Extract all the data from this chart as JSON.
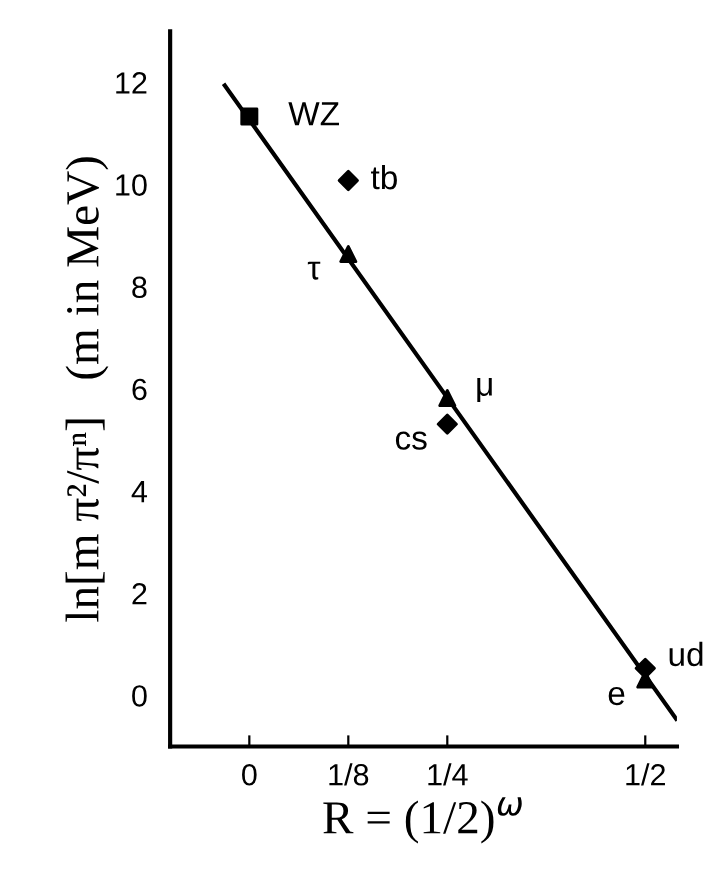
{
  "chart_data": {
    "type": "scatter",
    "xlabel": "R = (1/2)$^{ω}$",
    "ylabel": "ln[m π²/πⁿ]   (m in MeV)",
    "xlim": [
      -0.1,
      0.54
    ],
    "ylim": [
      -1,
      13
    ],
    "xticks": [
      0,
      {
        "value": 0.125,
        "label": "1/8"
      },
      {
        "value": 0.25,
        "label": "1/4"
      },
      {
        "value": 0.5,
        "label": "1/2"
      }
    ],
    "yticks": [
      0,
      2,
      4,
      6,
      8,
      10,
      12
    ],
    "grid": false,
    "legend": false,
    "series": [
      {
        "marker": "square",
        "color": "#000000",
        "x": [
          0
        ],
        "values": [
          11.33
        ]
      },
      {
        "marker": "diamond",
        "color": "#000000",
        "x": [
          0.125,
          0.25,
          0.5
        ],
        "values": [
          10.08,
          5.31,
          0.53
        ]
      },
      {
        "marker": "triangle",
        "color": "#000000",
        "x": [
          0.125,
          0.25,
          0.5
        ],
        "values": [
          8.64,
          5.82,
          0.31
        ]
      },
      {
        "type": "line",
        "marker": "none",
        "line_style": "solid",
        "color": "#000000",
        "x": [
          -0.031,
          0.539
        ],
        "values": [
          11.94,
          -0.46
        ]
      }
    ],
    "annotations": [
      {
        "text": "WZ",
        "x": 0,
        "y": 11.33
      },
      {
        "text": "tb",
        "x": 0.125,
        "y": 10.08
      },
      {
        "text": "τ",
        "x": 0.125,
        "y": 8.64
      },
      {
        "text": "μ",
        "x": 0.25,
        "y": 5.82
      },
      {
        "text": "cs",
        "x": 0.25,
        "y": 5.31
      },
      {
        "text": "ud",
        "x": 0.5,
        "y": 0.53
      },
      {
        "text": "e",
        "x": 0.5,
        "y": 0.31
      }
    ]
  }
}
